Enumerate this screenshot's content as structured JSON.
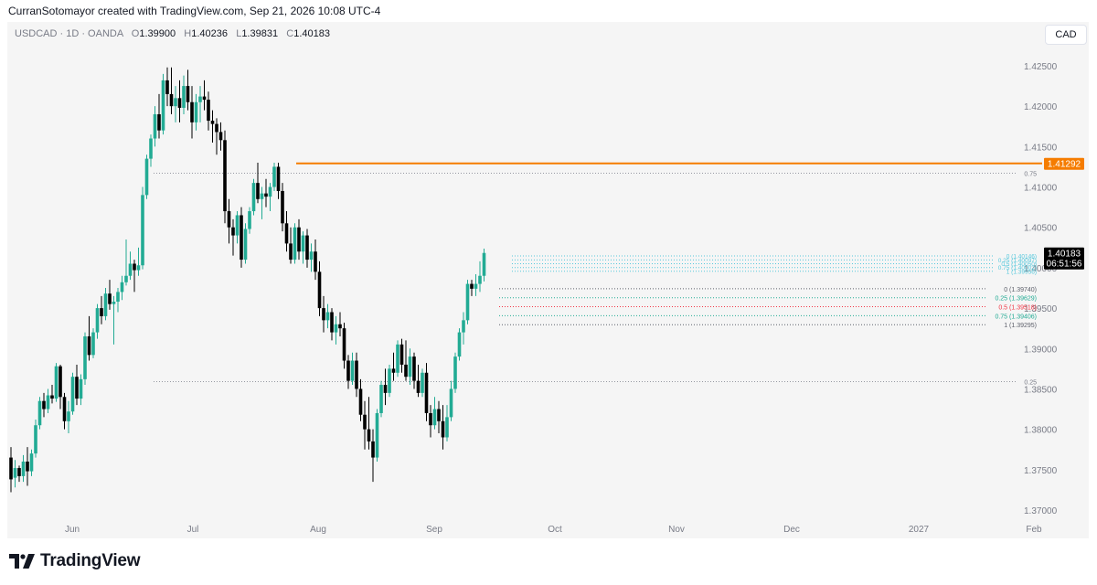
{
  "caption": "CurranSotomayor created with TradingView.com, Sep 21, 2026 10:08 UTC-4",
  "symbol": {
    "name": "USDCAD · 1D · OANDA",
    "o_label": "O",
    "o_value": "1.39900",
    "h_label": "H",
    "h_value": "1.40236",
    "l_label": "L",
    "l_value": "1.39831",
    "c_label": "C",
    "c_value": "1.40183"
  },
  "currency_button": "CAD",
  "brand": {
    "name": "TradingView",
    "logo": "tradingview-logo-icon"
  },
  "colors": {
    "up": "#22ab94",
    "down": "#000000",
    "resistance": "#f57c00",
    "price_badge": "#000000",
    "fib_upper": "#56c8dc",
    "fib_lower_gray": "#5d606b",
    "fib_lower_teal": "#22ab94",
    "fib_lower_red": "#f23645"
  },
  "chart_data": {
    "type": "candlestick",
    "y_axis": {
      "range": [
        1.3695,
        1.4265
      ],
      "ticks": [
        "1.42500",
        "1.42000",
        "1.41500",
        "1.41000",
        "1.40500",
        "1.40000",
        "1.39500",
        "1.39000",
        "1.38500",
        "1.38000",
        "1.37500",
        "1.37000"
      ]
    },
    "x_axis": {
      "ticks": [
        "Jun",
        "Jul",
        "Aug",
        "Sep",
        "Oct",
        "Nov",
        "Dec",
        "2027",
        "Feb"
      ]
    },
    "current_price": {
      "value": "1.40183",
      "countdown": "06:51:56"
    },
    "resistance": {
      "value": 1.41292,
      "label": "1.41292"
    },
    "fib_big": [
      {
        "label": "0.75",
        "value": 1.4117
      },
      {
        "label": "0.25",
        "value": 1.3859
      }
    ],
    "fib_upper": [
      {
        "label": "0 (1.40146)",
        "value": 1.40146
      },
      {
        "label": "0.25 (1.40097)",
        "value": 1.40097
      },
      {
        "label": "0.5 (1.40050)",
        "value": 1.4005
      },
      {
        "label": "0.75 (1.40002)",
        "value": 1.40002
      },
      {
        "label": "1 (1.39956)",
        "value": 1.39956
      }
    ],
    "fib_lower": [
      {
        "label": "0 (1.39740)",
        "value": 1.3974,
        "color": "gray"
      },
      {
        "label": "0.25 (1.39629)",
        "value": 1.39629,
        "color": "teal"
      },
      {
        "label": "0.5 (1.39518)",
        "value": 1.39518,
        "color": "red"
      },
      {
        "label": "0.75 (1.39406)",
        "value": 1.39406,
        "color": "teal"
      },
      {
        "label": "1 (1.39295)",
        "value": 1.39295,
        "color": "gray"
      }
    ],
    "candles": [
      [
        1.3765,
        1.3778,
        1.3722,
        1.3738
      ],
      [
        1.374,
        1.3762,
        1.3728,
        1.3752
      ],
      [
        1.3752,
        1.3755,
        1.3735,
        1.3742
      ],
      [
        1.3742,
        1.3768,
        1.3735,
        1.376
      ],
      [
        1.376,
        1.3778,
        1.373,
        1.3748
      ],
      [
        1.3748,
        1.3775,
        1.3742,
        1.377
      ],
      [
        1.377,
        1.3812,
        1.3765,
        1.3805
      ],
      [
        1.3805,
        1.384,
        1.38,
        1.3835
      ],
      [
        1.3835,
        1.3845,
        1.3815,
        1.3825
      ],
      [
        1.3825,
        1.385,
        1.382,
        1.3842
      ],
      [
        1.3842,
        1.3855,
        1.3832,
        1.3838
      ],
      [
        1.3838,
        1.3882,
        1.3834,
        1.3878
      ],
      [
        1.3878,
        1.388,
        1.3825,
        1.384
      ],
      [
        1.384,
        1.3845,
        1.38,
        1.381
      ],
      [
        1.381,
        1.3835,
        1.3795,
        1.3822
      ],
      [
        1.3822,
        1.387,
        1.3818,
        1.3865
      ],
      [
        1.3865,
        1.388,
        1.383,
        1.3838
      ],
      [
        1.3838,
        1.3868,
        1.383,
        1.3862
      ],
      [
        1.3862,
        1.392,
        1.3855,
        1.3915
      ],
      [
        1.3915,
        1.394,
        1.3885,
        1.3892
      ],
      [
        1.3892,
        1.3925,
        1.3888,
        1.392
      ],
      [
        1.392,
        1.3955,
        1.3912,
        1.395
      ],
      [
        1.395,
        1.3965,
        1.393,
        1.394
      ],
      [
        1.394,
        1.3975,
        1.3935,
        1.3968
      ],
      [
        1.3968,
        1.3985,
        1.3948,
        1.3955
      ],
      [
        1.3955,
        1.3965,
        1.3905,
        1.3958
      ],
      [
        1.3958,
        1.3975,
        1.3945,
        1.397
      ],
      [
        1.397,
        1.399,
        1.396,
        1.3982
      ],
      [
        1.3982,
        1.4035,
        1.3978,
        1.399
      ],
      [
        1.399,
        1.402,
        1.3985,
        1.4005
      ],
      [
        1.4005,
        1.401,
        1.397,
        1.3997
      ],
      [
        1.3997,
        1.4025,
        1.399,
        1.4003
      ],
      [
        1.4003,
        1.41,
        1.3998,
        1.409
      ],
      [
        1.409,
        1.414,
        1.4085,
        1.4135
      ],
      [
        1.4135,
        1.4165,
        1.4125,
        1.416
      ],
      [
        1.416,
        1.42,
        1.415,
        1.419
      ],
      [
        1.419,
        1.4215,
        1.416,
        1.417
      ],
      [
        1.417,
        1.424,
        1.4165,
        1.4232
      ],
      [
        1.4232,
        1.4248,
        1.42,
        1.4215
      ],
      [
        1.4215,
        1.4248,
        1.419,
        1.42
      ],
      [
        1.42,
        1.4225,
        1.418,
        1.421
      ],
      [
        1.421,
        1.4232,
        1.418,
        1.4198
      ],
      [
        1.4198,
        1.4238,
        1.419,
        1.4225
      ],
      [
        1.4225,
        1.4245,
        1.4195,
        1.4205
      ],
      [
        1.4205,
        1.4225,
        1.416,
        1.418
      ],
      [
        1.418,
        1.4215,
        1.417,
        1.4205
      ],
      [
        1.4205,
        1.4225,
        1.418,
        1.4212
      ],
      [
        1.4212,
        1.4232,
        1.4195,
        1.4208
      ],
      [
        1.4208,
        1.4218,
        1.417,
        1.4182
      ],
      [
        1.4182,
        1.4195,
        1.4155,
        1.4178
      ],
      [
        1.4178,
        1.4185,
        1.414,
        1.4168
      ],
      [
        1.4168,
        1.418,
        1.4145,
        1.4158
      ],
      [
        1.4158,
        1.417,
        1.4055,
        1.407
      ],
      [
        1.407,
        1.4085,
        1.403,
        1.405
      ],
      [
        1.405,
        1.406,
        1.4015,
        1.404
      ],
      [
        1.404,
        1.407,
        1.403,
        1.4065
      ],
      [
        1.4065,
        1.4075,
        1.4,
        1.401
      ],
      [
        1.401,
        1.4055,
        1.4005,
        1.4048
      ],
      [
        1.4048,
        1.4075,
        1.4042,
        1.407
      ],
      [
        1.407,
        1.411,
        1.4065,
        1.4105
      ],
      [
        1.4105,
        1.413,
        1.408,
        1.4085
      ],
      [
        1.4085,
        1.41,
        1.406,
        1.4092
      ],
      [
        1.4092,
        1.411,
        1.4075,
        1.4088
      ],
      [
        1.4088,
        1.4105,
        1.407,
        1.41
      ],
      [
        1.41,
        1.413,
        1.4095,
        1.4125
      ],
      [
        1.4125,
        1.413,
        1.4085,
        1.4095
      ],
      [
        1.4095,
        1.4105,
        1.4045,
        1.4055
      ],
      [
        1.4055,
        1.407,
        1.402,
        1.403
      ],
      [
        1.403,
        1.405,
        1.4005,
        1.401
      ],
      [
        1.401,
        1.4055,
        1.4005,
        1.405
      ],
      [
        1.405,
        1.406,
        1.401,
        1.402
      ],
      [
        1.402,
        1.4045,
        1.4005,
        1.404
      ],
      [
        1.404,
        1.4048,
        1.4,
        1.401
      ],
      [
        1.401,
        1.403,
        1.3995,
        1.402
      ],
      [
        1.402,
        1.4035,
        1.3985,
        1.3995
      ],
      [
        1.3995,
        1.4008,
        1.394,
        1.395
      ],
      [
        1.395,
        1.3965,
        1.392,
        1.3935
      ],
      [
        1.3935,
        1.3955,
        1.3925,
        1.3945
      ],
      [
        1.3945,
        1.395,
        1.391,
        1.392
      ],
      [
        1.392,
        1.394,
        1.3905,
        1.393
      ],
      [
        1.393,
        1.3945,
        1.3915,
        1.3925
      ],
      [
        1.3925,
        1.3932,
        1.3875,
        1.3885
      ],
      [
        1.3885,
        1.3892,
        1.385,
        1.386
      ],
      [
        1.386,
        1.3895,
        1.3855,
        1.3885
      ],
      [
        1.3885,
        1.3895,
        1.384,
        1.385
      ],
      [
        1.385,
        1.3862,
        1.381,
        1.3818
      ],
      [
        1.3818,
        1.3835,
        1.3775,
        1.38
      ],
      [
        1.38,
        1.384,
        1.3775,
        1.3785
      ],
      [
        1.3785,
        1.38,
        1.3735,
        1.3765
      ],
      [
        1.3765,
        1.3825,
        1.376,
        1.382
      ],
      [
        1.382,
        1.386,
        1.3815,
        1.3855
      ],
      [
        1.3855,
        1.3875,
        1.383,
        1.3845
      ],
      [
        1.3845,
        1.388,
        1.384,
        1.3875
      ],
      [
        1.3875,
        1.3895,
        1.386,
        1.387
      ],
      [
        1.387,
        1.391,
        1.3865,
        1.3905
      ],
      [
        1.3905,
        1.3912,
        1.387,
        1.388
      ],
      [
        1.388,
        1.391,
        1.386,
        1.3865
      ],
      [
        1.3865,
        1.39,
        1.3855,
        1.389
      ],
      [
        1.389,
        1.3895,
        1.385,
        1.386
      ],
      [
        1.386,
        1.388,
        1.384,
        1.3845
      ],
      [
        1.3845,
        1.3875,
        1.384,
        1.387
      ],
      [
        1.387,
        1.3882,
        1.381,
        1.382
      ],
      [
        1.382,
        1.383,
        1.379,
        1.3805
      ],
      [
        1.3805,
        1.384,
        1.38,
        1.3825
      ],
      [
        1.3825,
        1.3835,
        1.3795,
        1.381
      ],
      [
        1.381,
        1.383,
        1.3775,
        1.379
      ],
      [
        1.379,
        1.383,
        1.3785,
        1.3815
      ],
      [
        1.3815,
        1.386,
        1.381,
        1.385
      ],
      [
        1.385,
        1.3895,
        1.3845,
        1.389
      ],
      [
        1.389,
        1.3925,
        1.3885,
        1.392
      ],
      [
        1.392,
        1.3945,
        1.3905,
        1.3935
      ],
      [
        1.3935,
        1.3985,
        1.393,
        1.398
      ],
      [
        1.398,
        1.3985,
        1.3965,
        1.3974
      ],
      [
        1.3974,
        1.3992,
        1.3965,
        1.398
      ],
      [
        1.398,
        1.4008,
        1.397,
        1.399
      ],
      [
        1.399,
        1.40236,
        1.39831,
        1.40183
      ]
    ]
  }
}
